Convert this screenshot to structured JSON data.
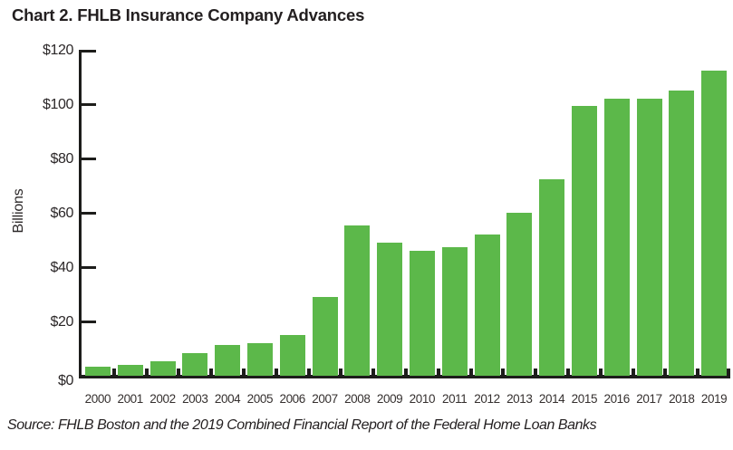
{
  "page": {
    "title": "Chart 2. FHLB Insurance Company Advances",
    "source_note": "Source: FHLB Boston and the 2019 Combined Financial Report of the Federal Home Loan Banks"
  },
  "colors": {
    "bar_green": "#5cb84a",
    "axis_black": "#1d1d1b",
    "text_dark": "#231f20"
  },
  "chart_data": {
    "type": "bar",
    "title": "Chart 2. FHLB Insurance Company Advances",
    "xlabel": "",
    "ylabel": "Billions",
    "categories": [
      "2000",
      "2001",
      "2002",
      "2003",
      "2004",
      "2005",
      "2006",
      "2007",
      "2008",
      "2009",
      "2010",
      "2011",
      "2012",
      "2013",
      "2014",
      "2015",
      "2016",
      "2017",
      "2018",
      "2019"
    ],
    "values": [
      3.5,
      4,
      5.5,
      8.5,
      11.5,
      12,
      15,
      29,
      55.5,
      49,
      46,
      47.5,
      52,
      60,
      72.5,
      99.5,
      102,
      102,
      105,
      112.5
    ],
    "ylim": [
      0,
      120
    ],
    "ytick_interval": 20,
    "ytick_labels": [
      "$0",
      "$20",
      "$40",
      "$60",
      "$80",
      "$100",
      "$120"
    ],
    "grid": false,
    "legend": false,
    "bar_color": "#5cb84a"
  }
}
